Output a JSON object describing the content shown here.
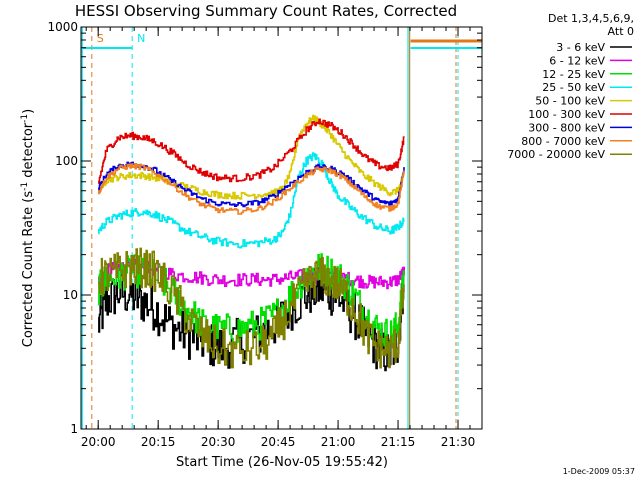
{
  "chart_data": {
    "type": "line",
    "title": "HESSI Observing Summary Count Rates, Corrected",
    "xlabel": "Start Time (26-Nov-05 19:55:42)",
    "ylabel_main": "Corrected Count Rate (s",
    "ylabel_sup1": "-1",
    "ylabel_mid": " detector",
    "ylabel_sup2": "-1",
    "ylabel_end": ")",
    "yscale": "log",
    "ylim": [
      1,
      1000
    ],
    "xlim_minutes": [
      -4.3,
      96
    ],
    "y_ticks": [
      {
        "value": 1,
        "label": "1"
      },
      {
        "value": 10,
        "label": "10"
      },
      {
        "value": 100,
        "label": "100"
      },
      {
        "value": 1000,
        "label": "1000"
      }
    ],
    "x_ticks": [
      {
        "minute": 0,
        "label": "20:00"
      },
      {
        "minute": 15,
        "label": "20:15"
      },
      {
        "minute": 30,
        "label": "20:30"
      },
      {
        "minute": 45,
        "label": "20:45"
      },
      {
        "minute": 60,
        "label": "21:00"
      },
      {
        "minute": 75,
        "label": "21:15"
      },
      {
        "minute": 90,
        "label": "21:30"
      }
    ],
    "legend_header": [
      "Det 1,3,4,5,6,9,",
      "Att 0"
    ],
    "footer": "1-Dec-2009 05:37",
    "markers": [
      {
        "label": "S",
        "minute": -1.6,
        "color": "#e07818"
      },
      {
        "label": "N",
        "minute": 8.5,
        "color": "#00e8f0"
      }
    ],
    "series": [
      {
        "name": "3 - 6 keV",
        "color": "#000000",
        "x": [
          0,
          2,
          5,
          8,
          11,
          14,
          18,
          22,
          26,
          30,
          35,
          40,
          44,
          48,
          52,
          55,
          58,
          61,
          64,
          67,
          70,
          73,
          75,
          76.5
        ],
        "y": [
          6,
          9,
          10.5,
          10,
          9,
          8,
          6,
          5,
          4.5,
          4,
          4.5,
          5,
          6,
          8,
          10,
          11,
          10.5,
          9,
          7,
          5,
          4,
          3.5,
          4.5,
          14
        ]
      },
      {
        "name": "6 - 12 keV",
        "color": "#e000e0",
        "x": [
          0,
          2,
          4,
          6,
          9,
          12,
          16,
          20,
          25,
          30,
          35,
          40,
          44,
          48,
          52,
          55,
          58,
          61,
          64,
          67,
          70,
          73,
          75,
          76.5
        ],
        "y": [
          13,
          15,
          16,
          16,
          16.5,
          16,
          15,
          14,
          13.5,
          13,
          13,
          13,
          13,
          13.5,
          14,
          14,
          14,
          13.5,
          13,
          12.5,
          12.5,
          12.5,
          13,
          15
        ]
      },
      {
        "name": "12 - 25 keV",
        "color": "#00e000",
        "x": [
          0,
          2,
          5,
          8,
          11,
          14,
          18,
          22,
          26,
          30,
          35,
          40,
          44,
          48,
          52,
          55,
          58,
          61,
          64,
          67,
          70,
          73,
          75,
          76.5
        ],
        "y": [
          11,
          13,
          14,
          15,
          15,
          14,
          11,
          8,
          6,
          5.5,
          5.5,
          6,
          7,
          10,
          14,
          16,
          15,
          13,
          10,
          7,
          5.5,
          5,
          6,
          14
        ]
      },
      {
        "name": "25 - 50 keV",
        "color": "#00e8f0",
        "x": [
          0,
          2,
          5,
          8,
          11,
          14,
          18,
          22,
          26,
          30,
          35,
          40,
          44,
          46,
          48,
          50,
          52,
          54,
          56,
          58,
          60,
          63,
          66,
          70,
          73,
          75,
          76.5
        ],
        "y": [
          30,
          35,
          39,
          41,
          42,
          40,
          35,
          30,
          27,
          25,
          24,
          24.5,
          26,
          29,
          40,
          75,
          100,
          110,
          95,
          70,
          55,
          45,
          38,
          32,
          30,
          32,
          36
        ]
      },
      {
        "name": "50 - 100 keV",
        "color": "#d8c800",
        "x": [
          0,
          2,
          5,
          8,
          11,
          14,
          18,
          22,
          26,
          30,
          35,
          40,
          44,
          46,
          48,
          50,
          52,
          54,
          56,
          58,
          60,
          63,
          66,
          70,
          73,
          75,
          76.5
        ],
        "y": [
          60,
          72,
          76,
          78,
          78,
          75,
          70,
          64,
          59,
          56,
          55,
          56,
          58,
          62,
          80,
          150,
          190,
          210,
          185,
          160,
          130,
          100,
          80,
          65,
          58,
          60,
          80
        ]
      },
      {
        "name": "100 - 300 keV",
        "color": "#e00000",
        "x": [
          0,
          2,
          5,
          8,
          11,
          14,
          18,
          22,
          26,
          30,
          35,
          40,
          44,
          48,
          52,
          55,
          58,
          61,
          64,
          67,
          70,
          73,
          75,
          76.5
        ],
        "y": [
          68,
          120,
          150,
          155,
          150,
          140,
          118,
          95,
          82,
          75,
          74,
          78,
          90,
          120,
          170,
          200,
          185,
          160,
          130,
          105,
          92,
          88,
          95,
          150
        ]
      },
      {
        "name": "300 - 800 keV",
        "color": "#0000e0",
        "x": [
          0,
          2,
          5,
          8,
          11,
          14,
          18,
          22,
          26,
          30,
          35,
          40,
          44,
          48,
          52,
          55,
          58,
          61,
          64,
          67,
          70,
          73,
          75,
          76.5
        ],
        "y": [
          62,
          80,
          92,
          95,
          93,
          86,
          72,
          60,
          52,
          48,
          47,
          49,
          55,
          68,
          82,
          90,
          88,
          80,
          68,
          58,
          50,
          48,
          52,
          90
        ]
      },
      {
        "name": "800 - 7000 keV",
        "color": "#f08020",
        "x": [
          0,
          2,
          5,
          8,
          11,
          14,
          18,
          22,
          26,
          30,
          35,
          40,
          44,
          48,
          52,
          55,
          58,
          61,
          64,
          67,
          70,
          73,
          75,
          76.5
        ],
        "y": [
          58,
          75,
          88,
          92,
          90,
          82,
          68,
          55,
          47,
          43,
          42,
          44,
          50,
          63,
          78,
          87,
          85,
          76,
          64,
          53,
          46,
          44,
          48,
          85
        ]
      },
      {
        "name": "7000 - 20000 keV",
        "color": "#808000",
        "x": [
          0,
          2,
          5,
          8,
          11,
          14,
          18,
          22,
          26,
          30,
          35,
          40,
          44,
          48,
          52,
          55,
          58,
          61,
          64,
          67,
          70,
          73,
          75,
          76.5
        ],
        "y": [
          13,
          14,
          15,
          16,
          16,
          15,
          11,
          7,
          5,
          4,
          3.8,
          4,
          5,
          8,
          12,
          14,
          13,
          11,
          8,
          5,
          4,
          3.8,
          4.5,
          12
        ]
      }
    ]
  }
}
